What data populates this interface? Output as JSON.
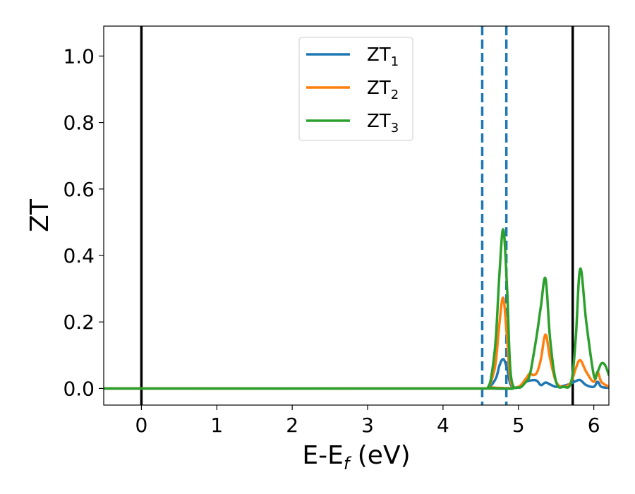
{
  "chart_data": {
    "type": "line",
    "xlabel": {
      "main": "E-E",
      "sub": "f",
      "suffix": " (eV)"
    },
    "ylabel": "ZT",
    "xlim": [
      -0.5,
      6.2
    ],
    "ylim": [
      -0.05,
      1.09
    ],
    "xticks": [
      0,
      1,
      2,
      3,
      4,
      5,
      6
    ],
    "xtick_labels": [
      "0",
      "1",
      "2",
      "3",
      "4",
      "5",
      "6"
    ],
    "yticks": [
      0.0,
      0.2,
      0.4,
      0.6,
      0.8,
      1.0
    ],
    "ytick_labels": [
      "0.0",
      "0.2",
      "0.4",
      "0.6",
      "0.8",
      "1.0"
    ],
    "grid": false,
    "legend_position": "top-center",
    "vertical_lines": [
      {
        "x": 0.0,
        "style": "solid",
        "color": "#000000"
      },
      {
        "x": 5.72,
        "style": "solid",
        "color": "#000000"
      },
      {
        "x": 4.52,
        "style": "dashed",
        "color": "#1f77b4"
      },
      {
        "x": 4.84,
        "style": "dashed",
        "color": "#1f77b4"
      }
    ],
    "series": [
      {
        "name": "ZT",
        "subscript": "1",
        "color": "#1f77b4",
        "x": [
          -0.5,
          4.5,
          4.6,
          4.7,
          4.75,
          4.8,
          4.85,
          4.9,
          5.0,
          5.1,
          5.2,
          5.25,
          5.3,
          5.36,
          5.42,
          5.5,
          5.6,
          5.7,
          5.76,
          5.82,
          5.9,
          6.0,
          6.05,
          6.1,
          6.2
        ],
        "y": [
          0.0,
          0.0,
          0.002,
          0.03,
          0.07,
          0.088,
          0.06,
          0.01,
          0.003,
          0.02,
          0.025,
          0.022,
          0.01,
          0.018,
          0.012,
          0.005,
          0.008,
          0.015,
          0.022,
          0.025,
          0.01,
          0.005,
          0.02,
          0.005,
          0.002
        ]
      },
      {
        "name": "ZT",
        "subscript": "2",
        "color": "#ff7f0e",
        "x": [
          -0.5,
          4.5,
          4.6,
          4.65,
          4.7,
          4.75,
          4.8,
          4.85,
          4.9,
          5.0,
          5.1,
          5.15,
          5.2,
          5.25,
          5.3,
          5.36,
          5.42,
          5.5,
          5.6,
          5.7,
          5.76,
          5.82,
          5.9,
          6.0,
          6.05,
          6.1,
          6.2
        ],
        "y": [
          0.0,
          0.0,
          0.005,
          0.03,
          0.08,
          0.2,
          0.272,
          0.15,
          0.02,
          0.005,
          0.03,
          0.045,
          0.04,
          0.05,
          0.09,
          0.162,
          0.09,
          0.02,
          0.005,
          0.02,
          0.06,
          0.085,
          0.05,
          0.02,
          0.05,
          0.02,
          0.005
        ]
      },
      {
        "name": "ZT",
        "subscript": "3",
        "color": "#2ca02c",
        "x": [
          -0.5,
          4.5,
          4.6,
          4.65,
          4.7,
          4.75,
          4.8,
          4.85,
          4.9,
          5.0,
          5.1,
          5.15,
          5.2,
          5.25,
          5.3,
          5.36,
          5.42,
          5.5,
          5.6,
          5.7,
          5.76,
          5.82,
          5.9,
          6.0,
          6.05,
          6.1,
          6.15,
          6.2
        ],
        "y": [
          0.0,
          0.0,
          0.005,
          0.05,
          0.15,
          0.35,
          0.478,
          0.3,
          0.04,
          0.003,
          0.02,
          0.04,
          0.1,
          0.17,
          0.25,
          0.33,
          0.15,
          0.02,
          0.005,
          0.02,
          0.15,
          0.36,
          0.2,
          0.04,
          0.05,
          0.075,
          0.07,
          0.04
        ]
      }
    ]
  }
}
